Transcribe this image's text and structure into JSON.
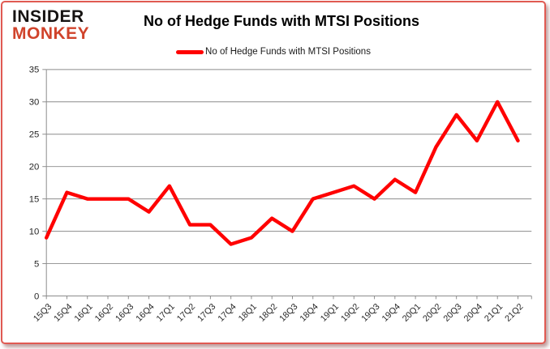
{
  "logo": {
    "line1": "INSIDER",
    "line2": "MONKEY"
  },
  "header": {
    "title": "No of Hedge Funds with MTSI Positions"
  },
  "legend": {
    "label": "No of Hedge Funds with MTSI Positions"
  },
  "chart_data": {
    "type": "line",
    "title": "No of Hedge Funds with MTSI Positions",
    "categories": [
      "15Q3",
      "15Q4",
      "16Q1",
      "16Q2",
      "16Q3",
      "16Q4",
      "17Q1",
      "17Q2",
      "17Q3",
      "17Q4",
      "18Q1",
      "18Q2",
      "18Q3",
      "18Q4",
      "19Q1",
      "19Q2",
      "19Q3",
      "19Q4",
      "20Q1",
      "20Q2",
      "20Q3",
      "20Q4",
      "21Q1",
      "21Q2"
    ],
    "series": [
      {
        "name": "No of Hedge Funds with MTSI Positions",
        "color": "#ff0000",
        "values": [
          9,
          16,
          15,
          15,
          15,
          13,
          17,
          11,
          11,
          8,
          9,
          12,
          10,
          15,
          16,
          17,
          15,
          18,
          16,
          23,
          28,
          24,
          30,
          24
        ]
      }
    ],
    "xlabel": "",
    "ylabel": "",
    "ylim": [
      0,
      35
    ],
    "yticks": [
      0,
      5,
      10,
      15,
      20,
      25,
      30,
      35
    ],
    "grid": "horizontal",
    "legend_position": "top-center"
  },
  "colors": {
    "series_red": "#ff0000",
    "logo_black": "#161312",
    "logo_red": "#d0432b",
    "card_border": "#e05a52",
    "gridline": "#8c8c8c",
    "axis": "#8c8c8c",
    "tick_label": "#262626"
  }
}
